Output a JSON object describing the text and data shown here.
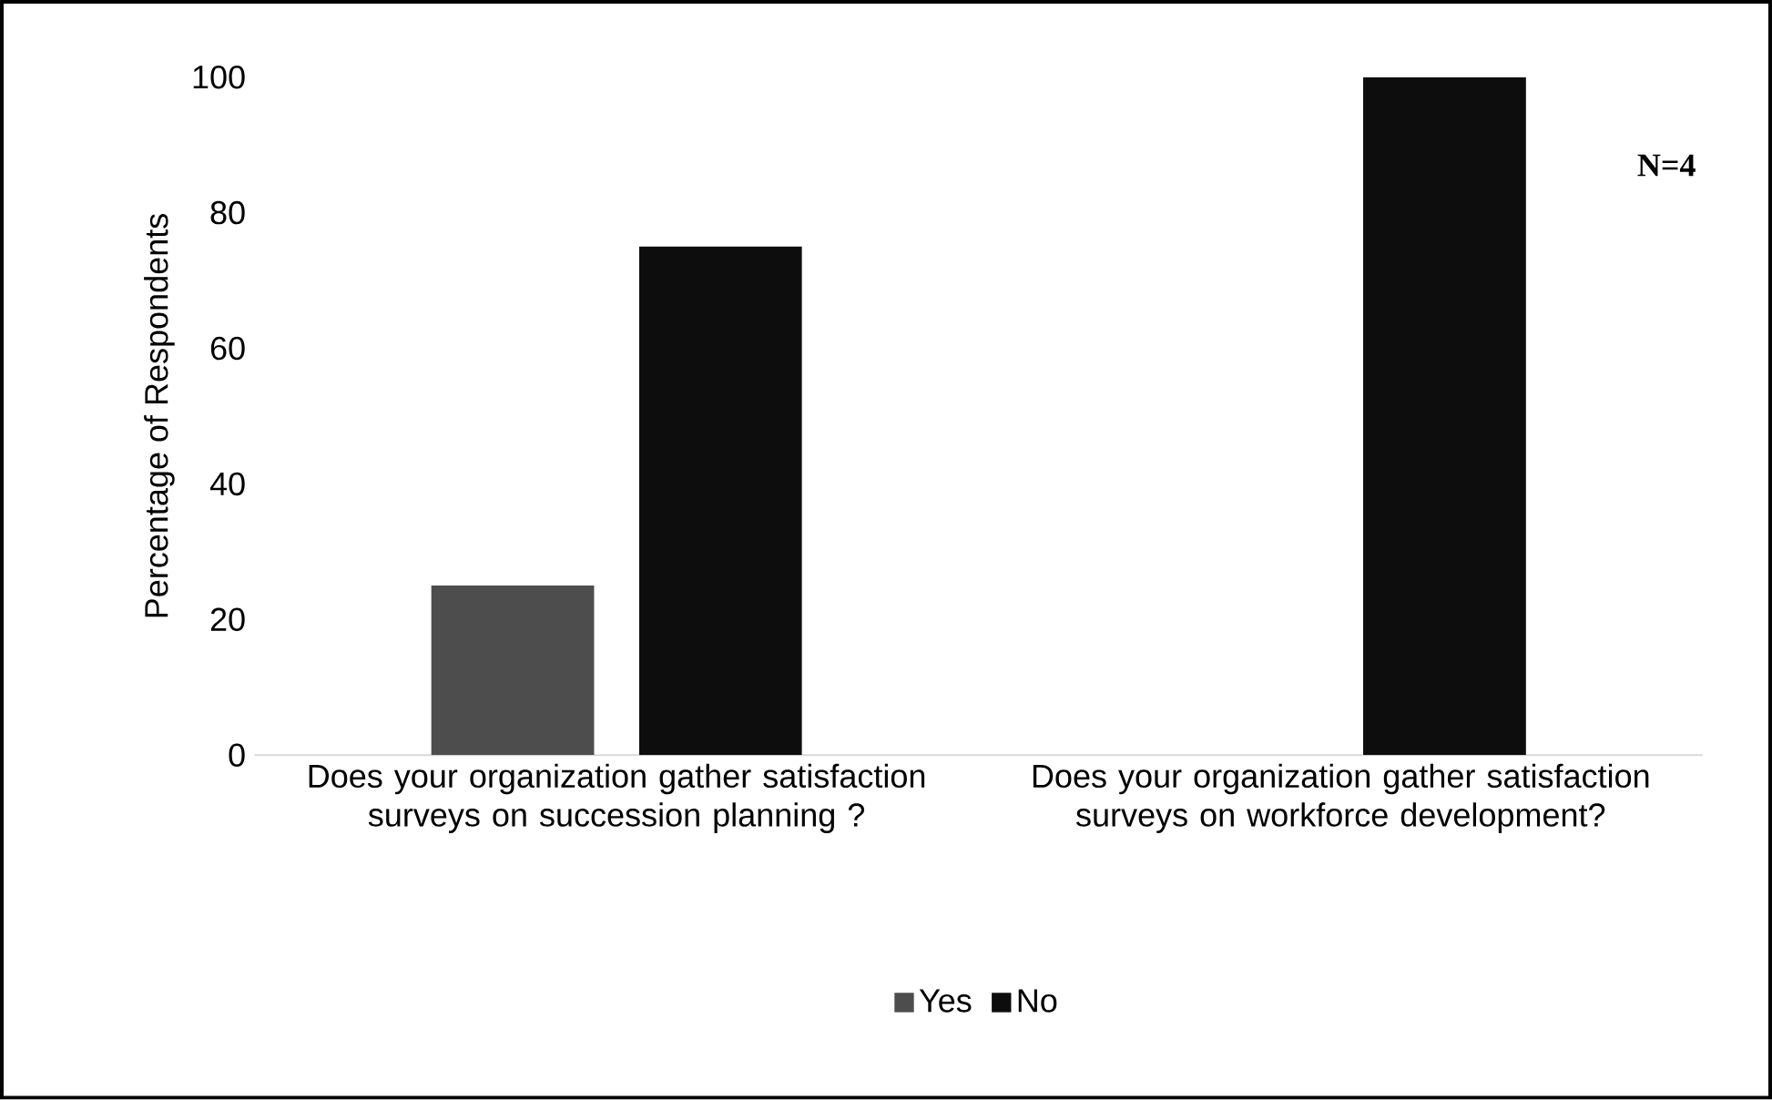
{
  "chart_data": {
    "type": "bar",
    "ylabel": "Percentage of Respondents",
    "categories": [
      "Does your organization gather satisfaction surveys on succession planning ?",
      "Does your organization gather satisfaction surveys on workforce development?"
    ],
    "series": [
      {
        "name": "Yes",
        "color": "#4d4d4d",
        "values": [
          25,
          0
        ]
      },
      {
        "name": "No",
        "color": "#0d0d0d",
        "values": [
          75,
          100
        ]
      }
    ],
    "ylim": [
      0,
      100
    ],
    "yticks": [
      0,
      20,
      40,
      60,
      80,
      100
    ],
    "legend": "bottom",
    "annotations": [
      "**N=4**"
    ]
  }
}
